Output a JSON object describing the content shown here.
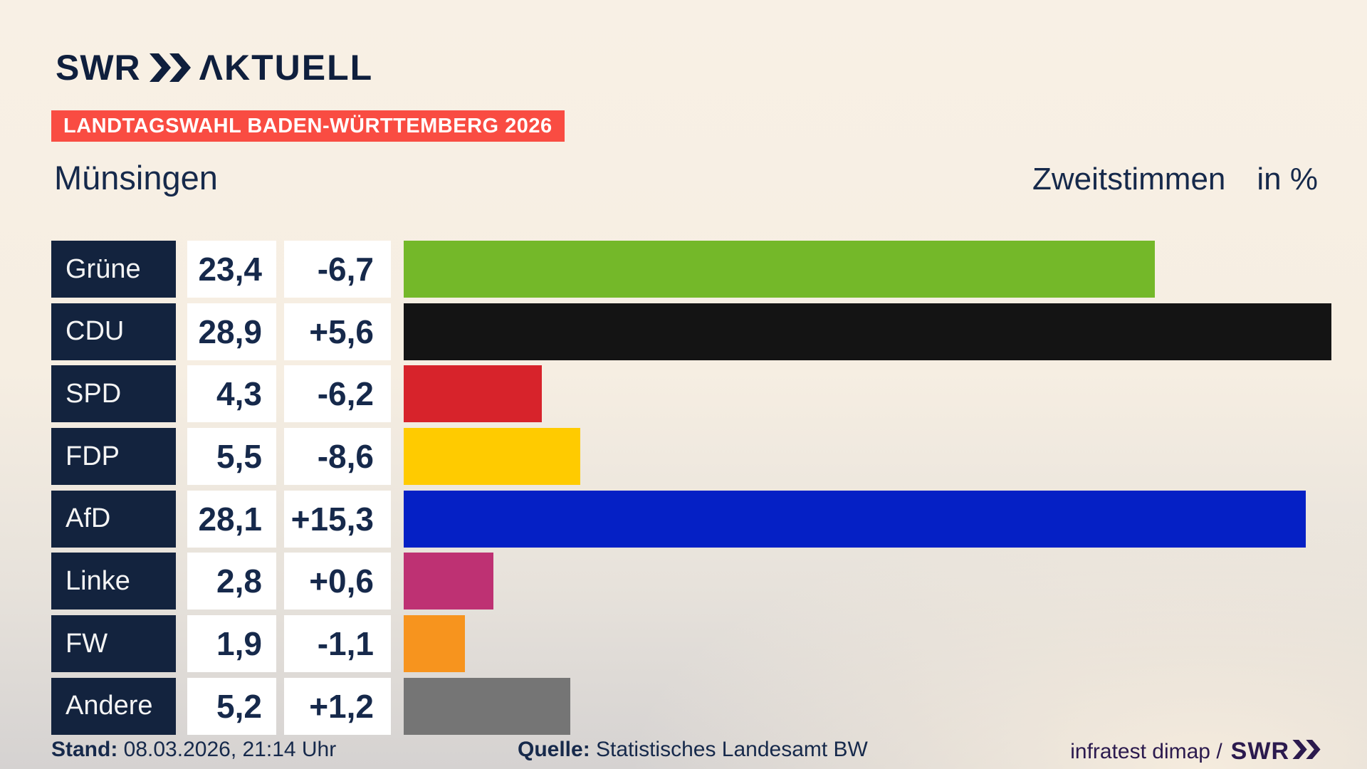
{
  "brand": {
    "logo_text": "SWR",
    "logo_suffix": "ΛKTUELL"
  },
  "header": {
    "badge": "LANDTAGSWAHL BADEN-WÜRTTEMBERG 2026",
    "municipality": "Münsingen",
    "measure_label": "Zweitstimmen",
    "unit_label": "in %"
  },
  "chart_data": {
    "type": "bar",
    "title": "Landtagswahl Baden-Württemberg 2026 — Münsingen, Zweitstimmen in %",
    "categories": [
      "Grüne",
      "CDU",
      "SPD",
      "FDP",
      "AfD",
      "Linke",
      "FW",
      "Andere"
    ],
    "values": [
      23.4,
      28.9,
      4.3,
      5.5,
      28.1,
      2.8,
      1.9,
      5.2
    ],
    "value_labels": [
      "23,4",
      "28,9",
      "4,3",
      "5,5",
      "28,1",
      "2,8",
      "1,9",
      "5,2"
    ],
    "diff_labels": [
      "-6,7",
      "+5,6",
      "-6,2",
      "-8,6",
      "+15,3",
      "+0,6",
      "-1,1",
      "+1,2"
    ],
    "bar_colors": [
      "#74b829",
      "#141414",
      "#d7232b",
      "#ffcb00",
      "#0520c5",
      "#be3173",
      "#f7941e",
      "#757575"
    ],
    "xlabel": "Zweitstimmen in %",
    "xlim": [
      0,
      28.9
    ],
    "grid": false,
    "legend": "none"
  },
  "colors": {
    "accent_badge": "#f94c42",
    "text_navy": "#16294b",
    "label_cell_bg": "#13233e",
    "credit_purple": "#2b1a4e",
    "background_top": "#f8f0e5",
    "background_bottom": "#d5d2d1"
  },
  "footer": {
    "stand_label": "Stand:",
    "stand_value": "08.03.2026, 21:14 Uhr",
    "quelle_label": "Quelle:",
    "quelle_value": "Statistisches Landesamt BW",
    "credit_text": "infratest dimap /",
    "credit_brand": "SWR"
  }
}
